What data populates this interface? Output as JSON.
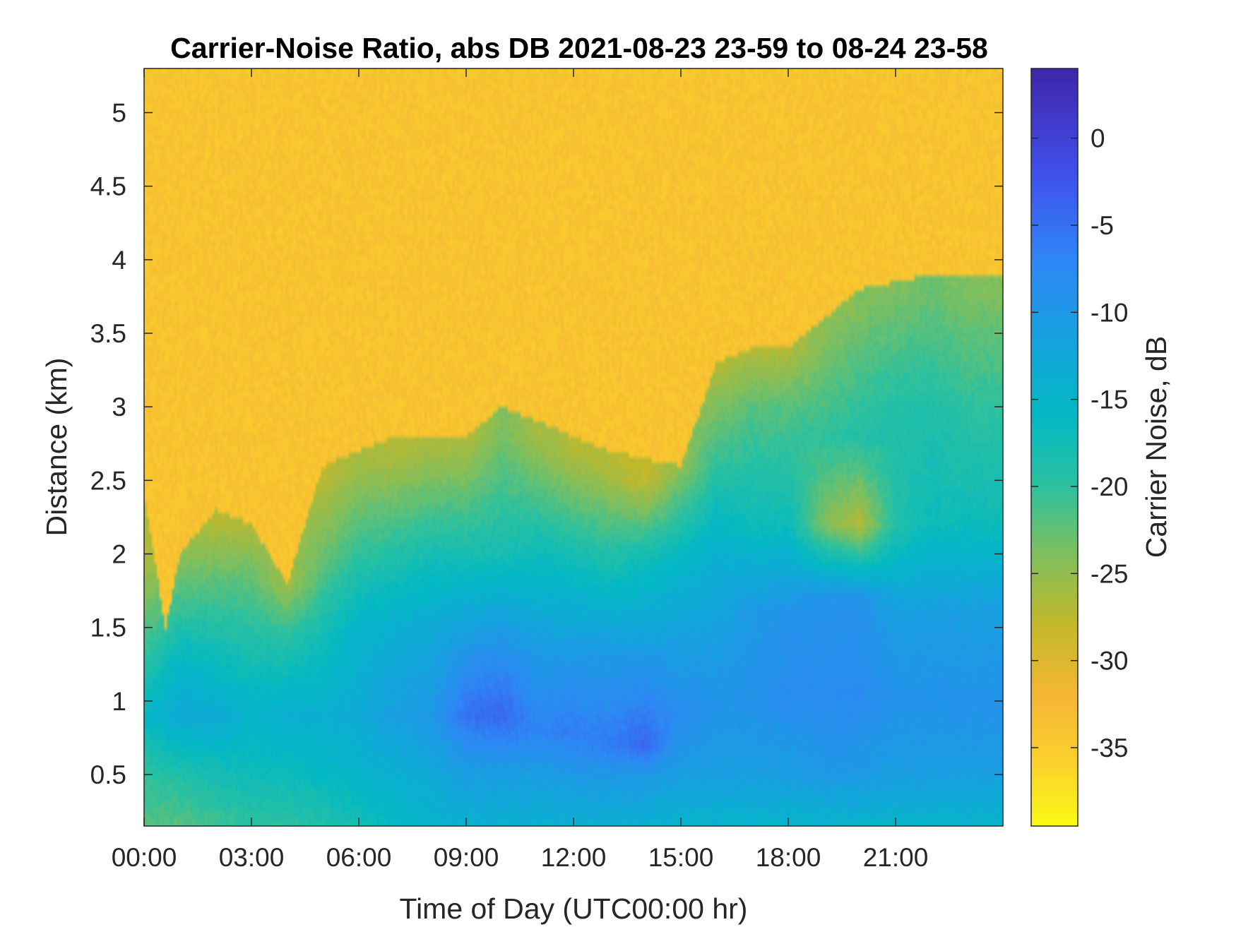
{
  "chart_data": {
    "type": "heatmap",
    "title": "Carrier-Noise Ratio, abs DB 2021-08-23 23-59 to 08-24 23-58",
    "xlabel": "Time of Day (UTC00:00 hr)",
    "ylabel": "Distance (km)",
    "colorbar_label": "Carrier Noise, dB",
    "xlim": [
      0,
      24
    ],
    "ylim": [
      0.15,
      5.3
    ],
    "clim": [
      -39.5,
      4
    ],
    "x_ticks": [
      {
        "value": 0,
        "label": "00:00"
      },
      {
        "value": 3,
        "label": "03:00"
      },
      {
        "value": 6,
        "label": "06:00"
      },
      {
        "value": 9,
        "label": "09:00"
      },
      {
        "value": 12,
        "label": "12:00"
      },
      {
        "value": 15,
        "label": "15:00"
      },
      {
        "value": 18,
        "label": "18:00"
      },
      {
        "value": 21,
        "label": "21:00"
      }
    ],
    "y_ticks": [
      {
        "value": 0.5,
        "label": "0.5"
      },
      {
        "value": 1,
        "label": "1"
      },
      {
        "value": 1.5,
        "label": "1.5"
      },
      {
        "value": 2,
        "label": "2"
      },
      {
        "value": 2.5,
        "label": "2.5"
      },
      {
        "value": 3,
        "label": "3"
      },
      {
        "value": 3.5,
        "label": "3.5"
      },
      {
        "value": 4,
        "label": "4"
      },
      {
        "value": 4.5,
        "label": "4.5"
      },
      {
        "value": 5,
        "label": "5"
      }
    ],
    "colorbar_ticks": [
      {
        "value": 0,
        "label": "0"
      },
      {
        "value": -5,
        "label": "-5"
      },
      {
        "value": -10,
        "label": "-10"
      },
      {
        "value": -15,
        "label": "-15"
      },
      {
        "value": -20,
        "label": "-20"
      },
      {
        "value": -25,
        "label": "-25"
      },
      {
        "value": -30,
        "label": "-30"
      },
      {
        "value": -35,
        "label": "-35"
      }
    ],
    "colormap": "parula_reversed",
    "colormap_stops": [
      {
        "value": 4,
        "color": "#3e26a8"
      },
      {
        "value": -2,
        "color": "#4150ec"
      },
      {
        "value": -7,
        "color": "#2e87f5"
      },
      {
        "value": -12,
        "color": "#14a5dc"
      },
      {
        "value": -16,
        "color": "#03b9c4"
      },
      {
        "value": -20,
        "color": "#2cc19f"
      },
      {
        "value": -24,
        "color": "#81bf5c"
      },
      {
        "value": -28,
        "color": "#c4b829"
      },
      {
        "value": -32,
        "color": "#f5b635"
      },
      {
        "value": -36,
        "color": "#fbd32c"
      },
      {
        "value": -39.5,
        "color": "#f9fb14"
      }
    ],
    "noise_floor_db": -34,
    "boundary_layer_top_km": [
      [
        0,
        2.4
      ],
      [
        0.6,
        1.5
      ],
      [
        1.0,
        2.0
      ],
      [
        2.0,
        2.3
      ],
      [
        3.0,
        2.2
      ],
      [
        4.0,
        1.8
      ],
      [
        5.0,
        2.6
      ],
      [
        6.0,
        2.7
      ],
      [
        7.0,
        2.8
      ],
      [
        9.0,
        2.8
      ],
      [
        10.0,
        3.0
      ],
      [
        11.0,
        2.9
      ],
      [
        13.0,
        2.7
      ],
      [
        15.0,
        2.6
      ],
      [
        16.0,
        3.3
      ],
      [
        17.0,
        3.4
      ],
      [
        18.0,
        3.4
      ],
      [
        19.0,
        3.6
      ],
      [
        20.0,
        3.8
      ],
      [
        22.0,
        3.9
      ],
      [
        24.0,
        3.9
      ]
    ],
    "profiles": [
      {
        "time": 0,
        "points": [
          [
            0.15,
            -22
          ],
          [
            0.5,
            -20
          ],
          [
            0.9,
            -16
          ],
          [
            1.3,
            -20
          ],
          [
            2.0,
            -27
          ]
        ]
      },
      {
        "time": 1,
        "points": [
          [
            0.15,
            -22
          ],
          [
            0.5,
            -19
          ],
          [
            0.9,
            -13
          ],
          [
            1.2,
            -15
          ],
          [
            1.6,
            -20
          ],
          [
            2.0,
            -25
          ]
        ]
      },
      {
        "time": 2,
        "points": [
          [
            0.15,
            -21
          ],
          [
            0.5,
            -18
          ],
          [
            0.9,
            -13
          ],
          [
            1.3,
            -17
          ],
          [
            1.8,
            -22
          ],
          [
            2.2,
            -27
          ]
        ]
      },
      {
        "time": 3,
        "points": [
          [
            0.15,
            -20
          ],
          [
            0.5,
            -17
          ],
          [
            0.9,
            -15
          ],
          [
            1.3,
            -18
          ],
          [
            1.8,
            -22
          ],
          [
            2.2,
            -27
          ]
        ]
      },
      {
        "time": 4,
        "points": [
          [
            0.15,
            -20
          ],
          [
            0.5,
            -17
          ],
          [
            0.9,
            -14
          ],
          [
            1.4,
            -19
          ],
          [
            1.8,
            -26
          ]
        ]
      },
      {
        "time": 5,
        "points": [
          [
            0.15,
            -19
          ],
          [
            0.5,
            -16
          ],
          [
            0.9,
            -14
          ],
          [
            1.5,
            -18
          ],
          [
            2.0,
            -23
          ],
          [
            2.6,
            -28
          ]
        ]
      },
      {
        "time": 6,
        "points": [
          [
            0.15,
            -18
          ],
          [
            0.5,
            -15
          ],
          [
            0.9,
            -13
          ],
          [
            1.5,
            -15
          ],
          [
            2.0,
            -20
          ],
          [
            2.6,
            -26
          ]
        ]
      },
      {
        "time": 7,
        "points": [
          [
            0.15,
            -16
          ],
          [
            0.5,
            -14
          ],
          [
            0.9,
            -11
          ],
          [
            1.5,
            -14
          ],
          [
            2.0,
            -19
          ],
          [
            2.7,
            -27
          ]
        ]
      },
      {
        "time": 8,
        "points": [
          [
            0.15,
            -15
          ],
          [
            0.5,
            -13
          ],
          [
            0.9,
            -10
          ],
          [
            1.5,
            -13
          ],
          [
            2.0,
            -18
          ],
          [
            2.7,
            -26
          ]
        ]
      },
      {
        "time": 9,
        "points": [
          [
            0.15,
            -14
          ],
          [
            0.5,
            -11
          ],
          [
            0.9,
            -5
          ],
          [
            1.3,
            -9
          ],
          [
            2.0,
            -18
          ],
          [
            2.8,
            -27
          ]
        ]
      },
      {
        "time": 10,
        "points": [
          [
            0.15,
            -14
          ],
          [
            0.5,
            -11
          ],
          [
            0.9,
            -4
          ],
          [
            1.3,
            -8
          ],
          [
            2.0,
            -18
          ],
          [
            2.9,
            -24
          ]
        ]
      },
      {
        "time": 11,
        "points": [
          [
            0.15,
            -14
          ],
          [
            0.5,
            -11
          ],
          [
            0.8,
            -7
          ],
          [
            1.3,
            -10
          ],
          [
            2.0,
            -17
          ],
          [
            2.8,
            -26
          ]
        ]
      },
      {
        "time": 12,
        "points": [
          [
            0.15,
            -14
          ],
          [
            0.5,
            -10
          ],
          [
            0.8,
            -6
          ],
          [
            1.3,
            -10
          ],
          [
            2.0,
            -18
          ],
          [
            2.7,
            -27
          ]
        ]
      },
      {
        "time": 13,
        "points": [
          [
            0.15,
            -14
          ],
          [
            0.5,
            -10
          ],
          [
            0.7,
            -6
          ],
          [
            1.3,
            -10
          ],
          [
            2.0,
            -19
          ],
          [
            2.6,
            -27
          ]
        ]
      },
      {
        "time": 14,
        "points": [
          [
            0.15,
            -14
          ],
          [
            0.5,
            -10
          ],
          [
            0.7,
            -4
          ],
          [
            1.3,
            -10
          ],
          [
            2.0,
            -18
          ],
          [
            2.5,
            -28
          ]
        ]
      },
      {
        "time": 15,
        "points": [
          [
            0.15,
            -15
          ],
          [
            0.5,
            -11
          ],
          [
            0.9,
            -8
          ],
          [
            1.5,
            -12
          ],
          [
            2.0,
            -16
          ],
          [
            2.6,
            -25
          ]
        ]
      },
      {
        "time": 16,
        "points": [
          [
            0.15,
            -15
          ],
          [
            0.5,
            -11
          ],
          [
            1.0,
            -9
          ],
          [
            1.6,
            -12
          ],
          [
            2.0,
            -14
          ],
          [
            2.8,
            -22
          ],
          [
            3.3,
            -27
          ]
        ]
      },
      {
        "time": 17,
        "points": [
          [
            0.15,
            -15
          ],
          [
            0.5,
            -11
          ],
          [
            1.0,
            -9
          ],
          [
            1.6,
            -10
          ],
          [
            2.2,
            -17
          ],
          [
            3.0,
            -22
          ],
          [
            3.4,
            -27
          ]
        ]
      },
      {
        "time": 18,
        "points": [
          [
            0.15,
            -15
          ],
          [
            0.5,
            -11
          ],
          [
            1.0,
            -8
          ],
          [
            1.6,
            -9
          ],
          [
            2.2,
            -17
          ],
          [
            3.0,
            -22
          ],
          [
            3.4,
            -27
          ]
        ]
      },
      {
        "time": 19,
        "points": [
          [
            0.15,
            -15
          ],
          [
            0.5,
            -10
          ],
          [
            1.0,
            -8
          ],
          [
            1.7,
            -9
          ],
          [
            2.2,
            -24
          ],
          [
            2.8,
            -20
          ],
          [
            3.6,
            -25
          ]
        ]
      },
      {
        "time": 20,
        "points": [
          [
            0.15,
            -15
          ],
          [
            0.5,
            -10
          ],
          [
            1.0,
            -8
          ],
          [
            1.7,
            -9
          ],
          [
            2.2,
            -27
          ],
          [
            2.8,
            -19
          ],
          [
            3.7,
            -24
          ]
        ]
      },
      {
        "time": 21,
        "points": [
          [
            0.15,
            -15
          ],
          [
            0.5,
            -11
          ],
          [
            1.0,
            -9
          ],
          [
            1.6,
            -11
          ],
          [
            2.2,
            -19
          ],
          [
            3.0,
            -19
          ],
          [
            3.8,
            -24
          ]
        ]
      },
      {
        "time": 22,
        "points": [
          [
            0.15,
            -15
          ],
          [
            0.5,
            -11
          ],
          [
            1.0,
            -9
          ],
          [
            1.6,
            -11
          ],
          [
            2.2,
            -17
          ],
          [
            3.0,
            -19
          ],
          [
            3.8,
            -23
          ]
        ]
      },
      {
        "time": 23,
        "points": [
          [
            0.15,
            -15
          ],
          [
            0.5,
            -11
          ],
          [
            1.0,
            -9
          ],
          [
            1.6,
            -11
          ],
          [
            2.2,
            -17
          ],
          [
            3.0,
            -20
          ],
          [
            3.8,
            -24
          ]
        ]
      },
      {
        "time": 24,
        "points": [
          [
            0.15,
            -15
          ],
          [
            0.5,
            -11
          ],
          [
            1.0,
            -9
          ],
          [
            1.6,
            -11
          ],
          [
            2.2,
            -17
          ],
          [
            3.0,
            -20
          ],
          [
            3.8,
            -24
          ]
        ]
      }
    ]
  }
}
